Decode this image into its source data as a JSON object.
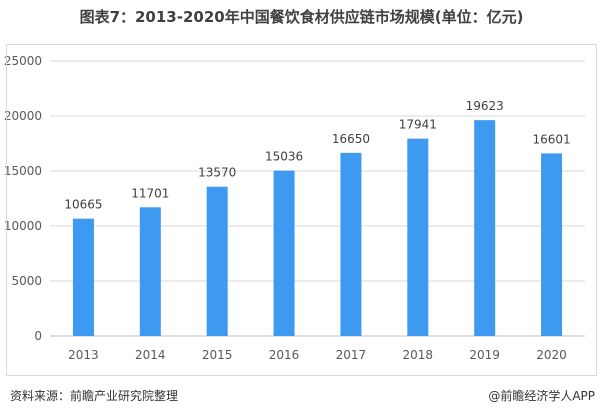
{
  "page": {
    "title": "图表7：2013-2020年中国餐饮食材供应链市场规模(单位：亿元)",
    "source": "资料来源：前瞻产业研究院整理",
    "credit": "@前瞻经济学人APP"
  },
  "colors": {
    "bar": "#3d9af0",
    "grid": "#d9d9d9",
    "axis": "#bfbfbf"
  },
  "chart_data": {
    "type": "bar",
    "title": "图表7：2013-2020年中国餐饮食材供应链市场规模(单位：亿元)",
    "xlabel": "",
    "ylabel": "",
    "categories": [
      "2013",
      "2014",
      "2015",
      "2016",
      "2017",
      "2018",
      "2019",
      "2020"
    ],
    "values": [
      10665,
      11701,
      13570,
      15036,
      16650,
      17941,
      19623,
      16601
    ],
    "data_labels": [
      "10665",
      "11701",
      "13570",
      "15036",
      "16650",
      "17941",
      "19623",
      "16601"
    ],
    "ylim": [
      0,
      25000
    ],
    "yticks": [
      0,
      5000,
      10000,
      15000,
      20000,
      25000
    ],
    "ytick_labels": [
      "0",
      "5000",
      "10000",
      "15000",
      "20000",
      "25000"
    ],
    "grid": true,
    "legend": "none"
  }
}
